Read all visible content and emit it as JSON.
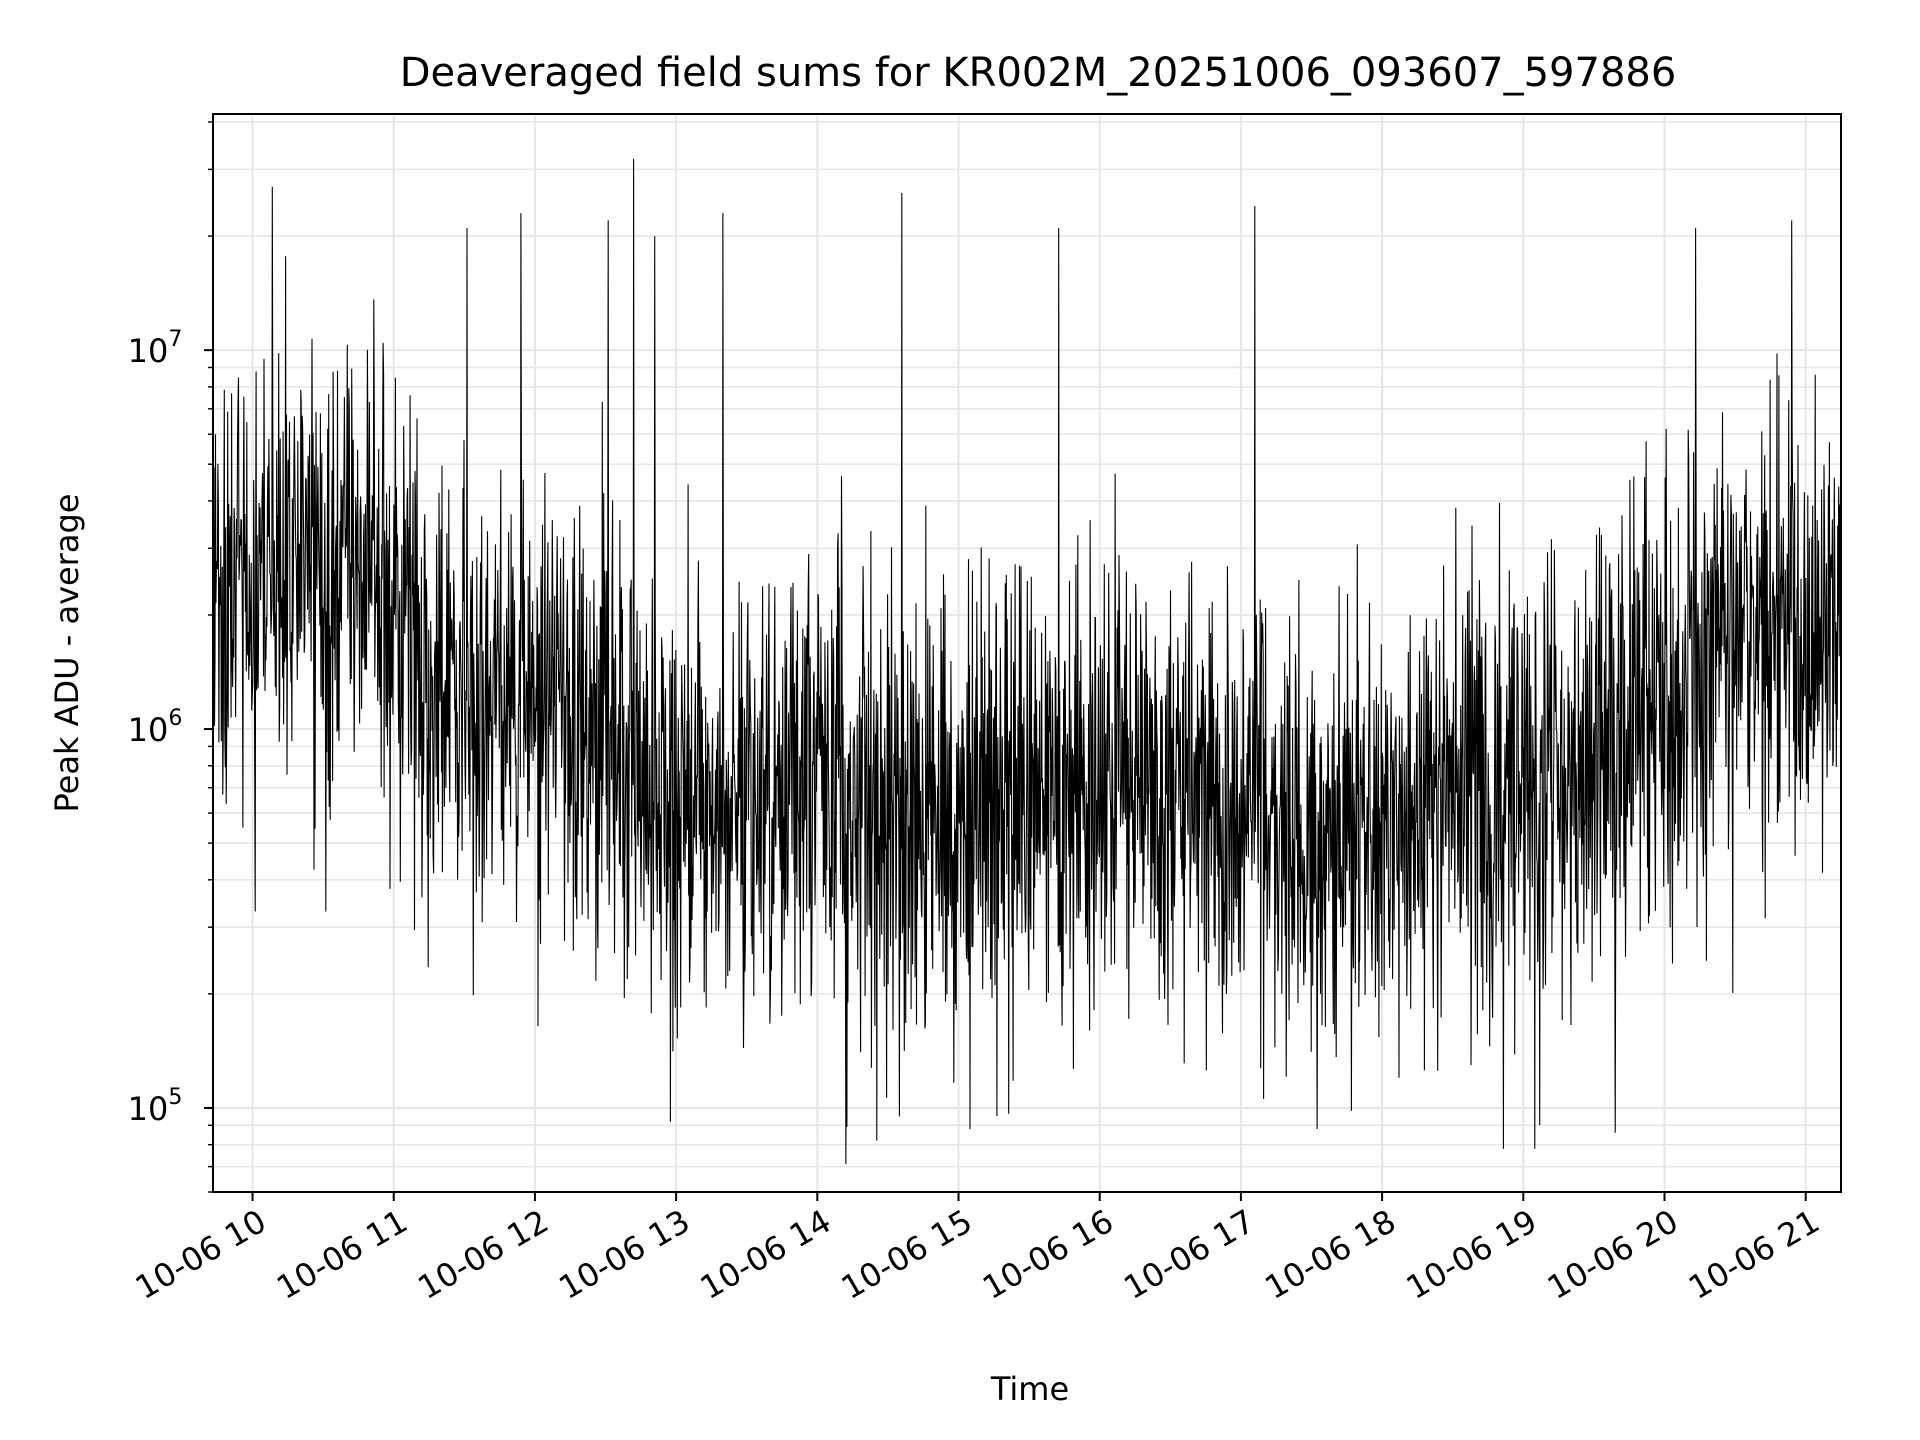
{
  "chart_data": {
    "type": "line",
    "title": "Deaveraged field sums for KR002M_20251006_093607_597886",
    "xlabel": "Time",
    "ylabel": "Peak ADU - average",
    "yscale": "log",
    "ylim": [
      60000,
      42000000
    ],
    "xlim_hours": [
      9.72,
      21.25
    ],
    "grid": true,
    "colors": {
      "line": "#000000",
      "grid": "#e6e6e6",
      "axes": "#000000",
      "background": "#ffffff"
    },
    "x_ticks": [
      {
        "hour": 10,
        "label": "10-06 10"
      },
      {
        "hour": 11,
        "label": "10-06 11"
      },
      {
        "hour": 12,
        "label": "10-06 12"
      },
      {
        "hour": 13,
        "label": "10-06 13"
      },
      {
        "hour": 14,
        "label": "10-06 14"
      },
      {
        "hour": 15,
        "label": "10-06 15"
      },
      {
        "hour": 16,
        "label": "10-06 16"
      },
      {
        "hour": 17,
        "label": "10-06 17"
      },
      {
        "hour": 18,
        "label": "10-06 18"
      },
      {
        "hour": 19,
        "label": "10-06 19"
      },
      {
        "hour": 20,
        "label": "10-06 20"
      },
      {
        "hour": 21,
        "label": "10-06 21"
      }
    ],
    "y_ticks": [
      {
        "value": 100000,
        "base": "10",
        "exp": "5"
      },
      {
        "value": 1000000,
        "base": "10",
        "exp": "6"
      },
      {
        "value": 10000000,
        "base": "10",
        "exp": "7"
      }
    ],
    "series": [
      {
        "name": "deaveraged field sum",
        "sample_interval_seconds": 10,
        "baseline_profile": [
          {
            "hour": 9.72,
            "median": 2200000
          },
          {
            "hour": 10.3,
            "median": 3000000
          },
          {
            "hour": 10.8,
            "median": 2600000
          },
          {
            "hour": 11.3,
            "median": 1300000
          },
          {
            "hour": 12.0,
            "median": 1200000
          },
          {
            "hour": 12.5,
            "median": 1000000
          },
          {
            "hour": 13.0,
            "median": 600000
          },
          {
            "hour": 13.8,
            "median": 700000
          },
          {
            "hour": 14.5,
            "median": 600000
          },
          {
            "hour": 15.0,
            "median": 550000
          },
          {
            "hour": 15.5,
            "median": 700000
          },
          {
            "hour": 16.5,
            "median": 700000
          },
          {
            "hour": 17.5,
            "median": 500000
          },
          {
            "hour": 18.5,
            "median": 700000
          },
          {
            "hour": 19.5,
            "median": 800000
          },
          {
            "hour": 20.5,
            "median": 1800000
          },
          {
            "hour": 21.25,
            "median": 1800000
          }
        ],
        "notable_peaks": [
          {
            "hour": 10.14,
            "value": 27000000
          },
          {
            "hour": 11.52,
            "value": 21000000
          },
          {
            "hour": 11.9,
            "value": 23000000
          },
          {
            "hour": 12.52,
            "value": 22000000
          },
          {
            "hour": 12.7,
            "value": 32000000
          },
          {
            "hour": 12.85,
            "value": 20000000
          },
          {
            "hour": 13.33,
            "value": 23000000
          },
          {
            "hour": 14.6,
            "value": 26000000
          },
          {
            "hour": 15.71,
            "value": 21000000
          },
          {
            "hour": 17.1,
            "value": 24000000
          },
          {
            "hour": 20.22,
            "value": 21000000
          },
          {
            "hour": 20.9,
            "value": 22000000
          }
        ],
        "notable_troughs": [
          {
            "hour": 10.02,
            "value": 330000
          },
          {
            "hour": 10.52,
            "value": 330000
          },
          {
            "hour": 12.96,
            "value": 92000
          },
          {
            "hour": 14.42,
            "value": 82000
          },
          {
            "hour": 14.58,
            "value": 95000
          },
          {
            "hour": 15.08,
            "value": 88000
          },
          {
            "hour": 17.54,
            "value": 88000
          },
          {
            "hour": 19.08,
            "value": 78000
          },
          {
            "hour": 19.65,
            "value": 86000
          }
        ]
      }
    ]
  }
}
